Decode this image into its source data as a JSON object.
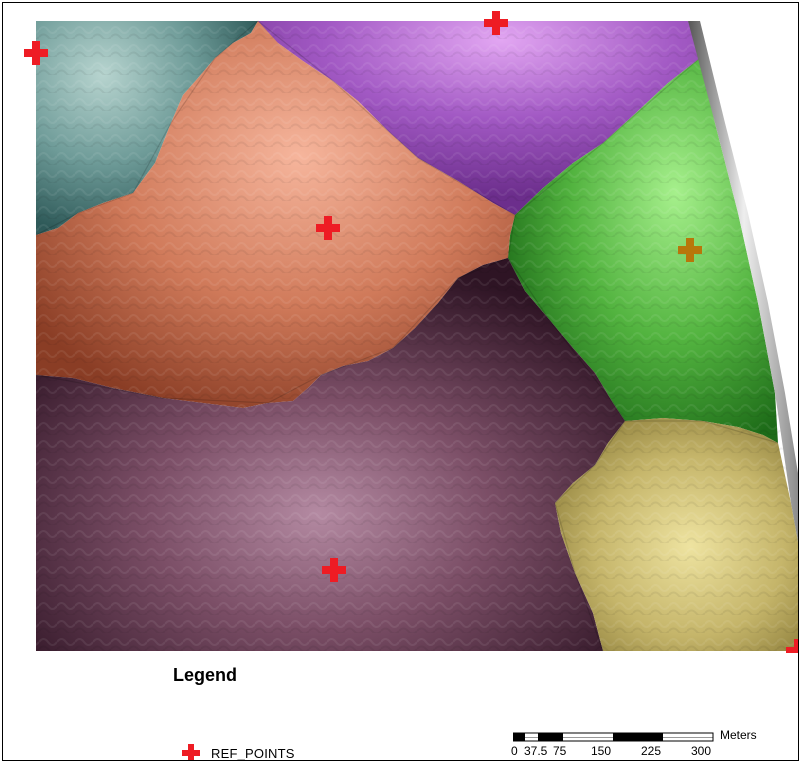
{
  "colors": {
    "ref_point": "#ee1c24",
    "ref_point_on_green": "#b8760a",
    "zone_teal": "#5f8f8c",
    "zone_purple": "#a455c0",
    "zone_salmon": "#d9856a",
    "zone_green": "#4fb244",
    "zone_plum": "#73455c",
    "zone_olive": "#c8bb6c"
  },
  "map": {
    "layers": [
      "DEM hillshade",
      "zones"
    ],
    "zones": [
      "teal",
      "purple",
      "salmon",
      "green",
      "plum",
      "olive"
    ]
  },
  "legend": {
    "title": "Legend",
    "items": [
      {
        "label": "REF_POINTS",
        "icon": "red-cross-icon"
      }
    ]
  },
  "scale_bar": {
    "unit": "Meters",
    "ticks": [
      "0",
      "37.5",
      "75",
      "150",
      "225",
      "300"
    ]
  }
}
